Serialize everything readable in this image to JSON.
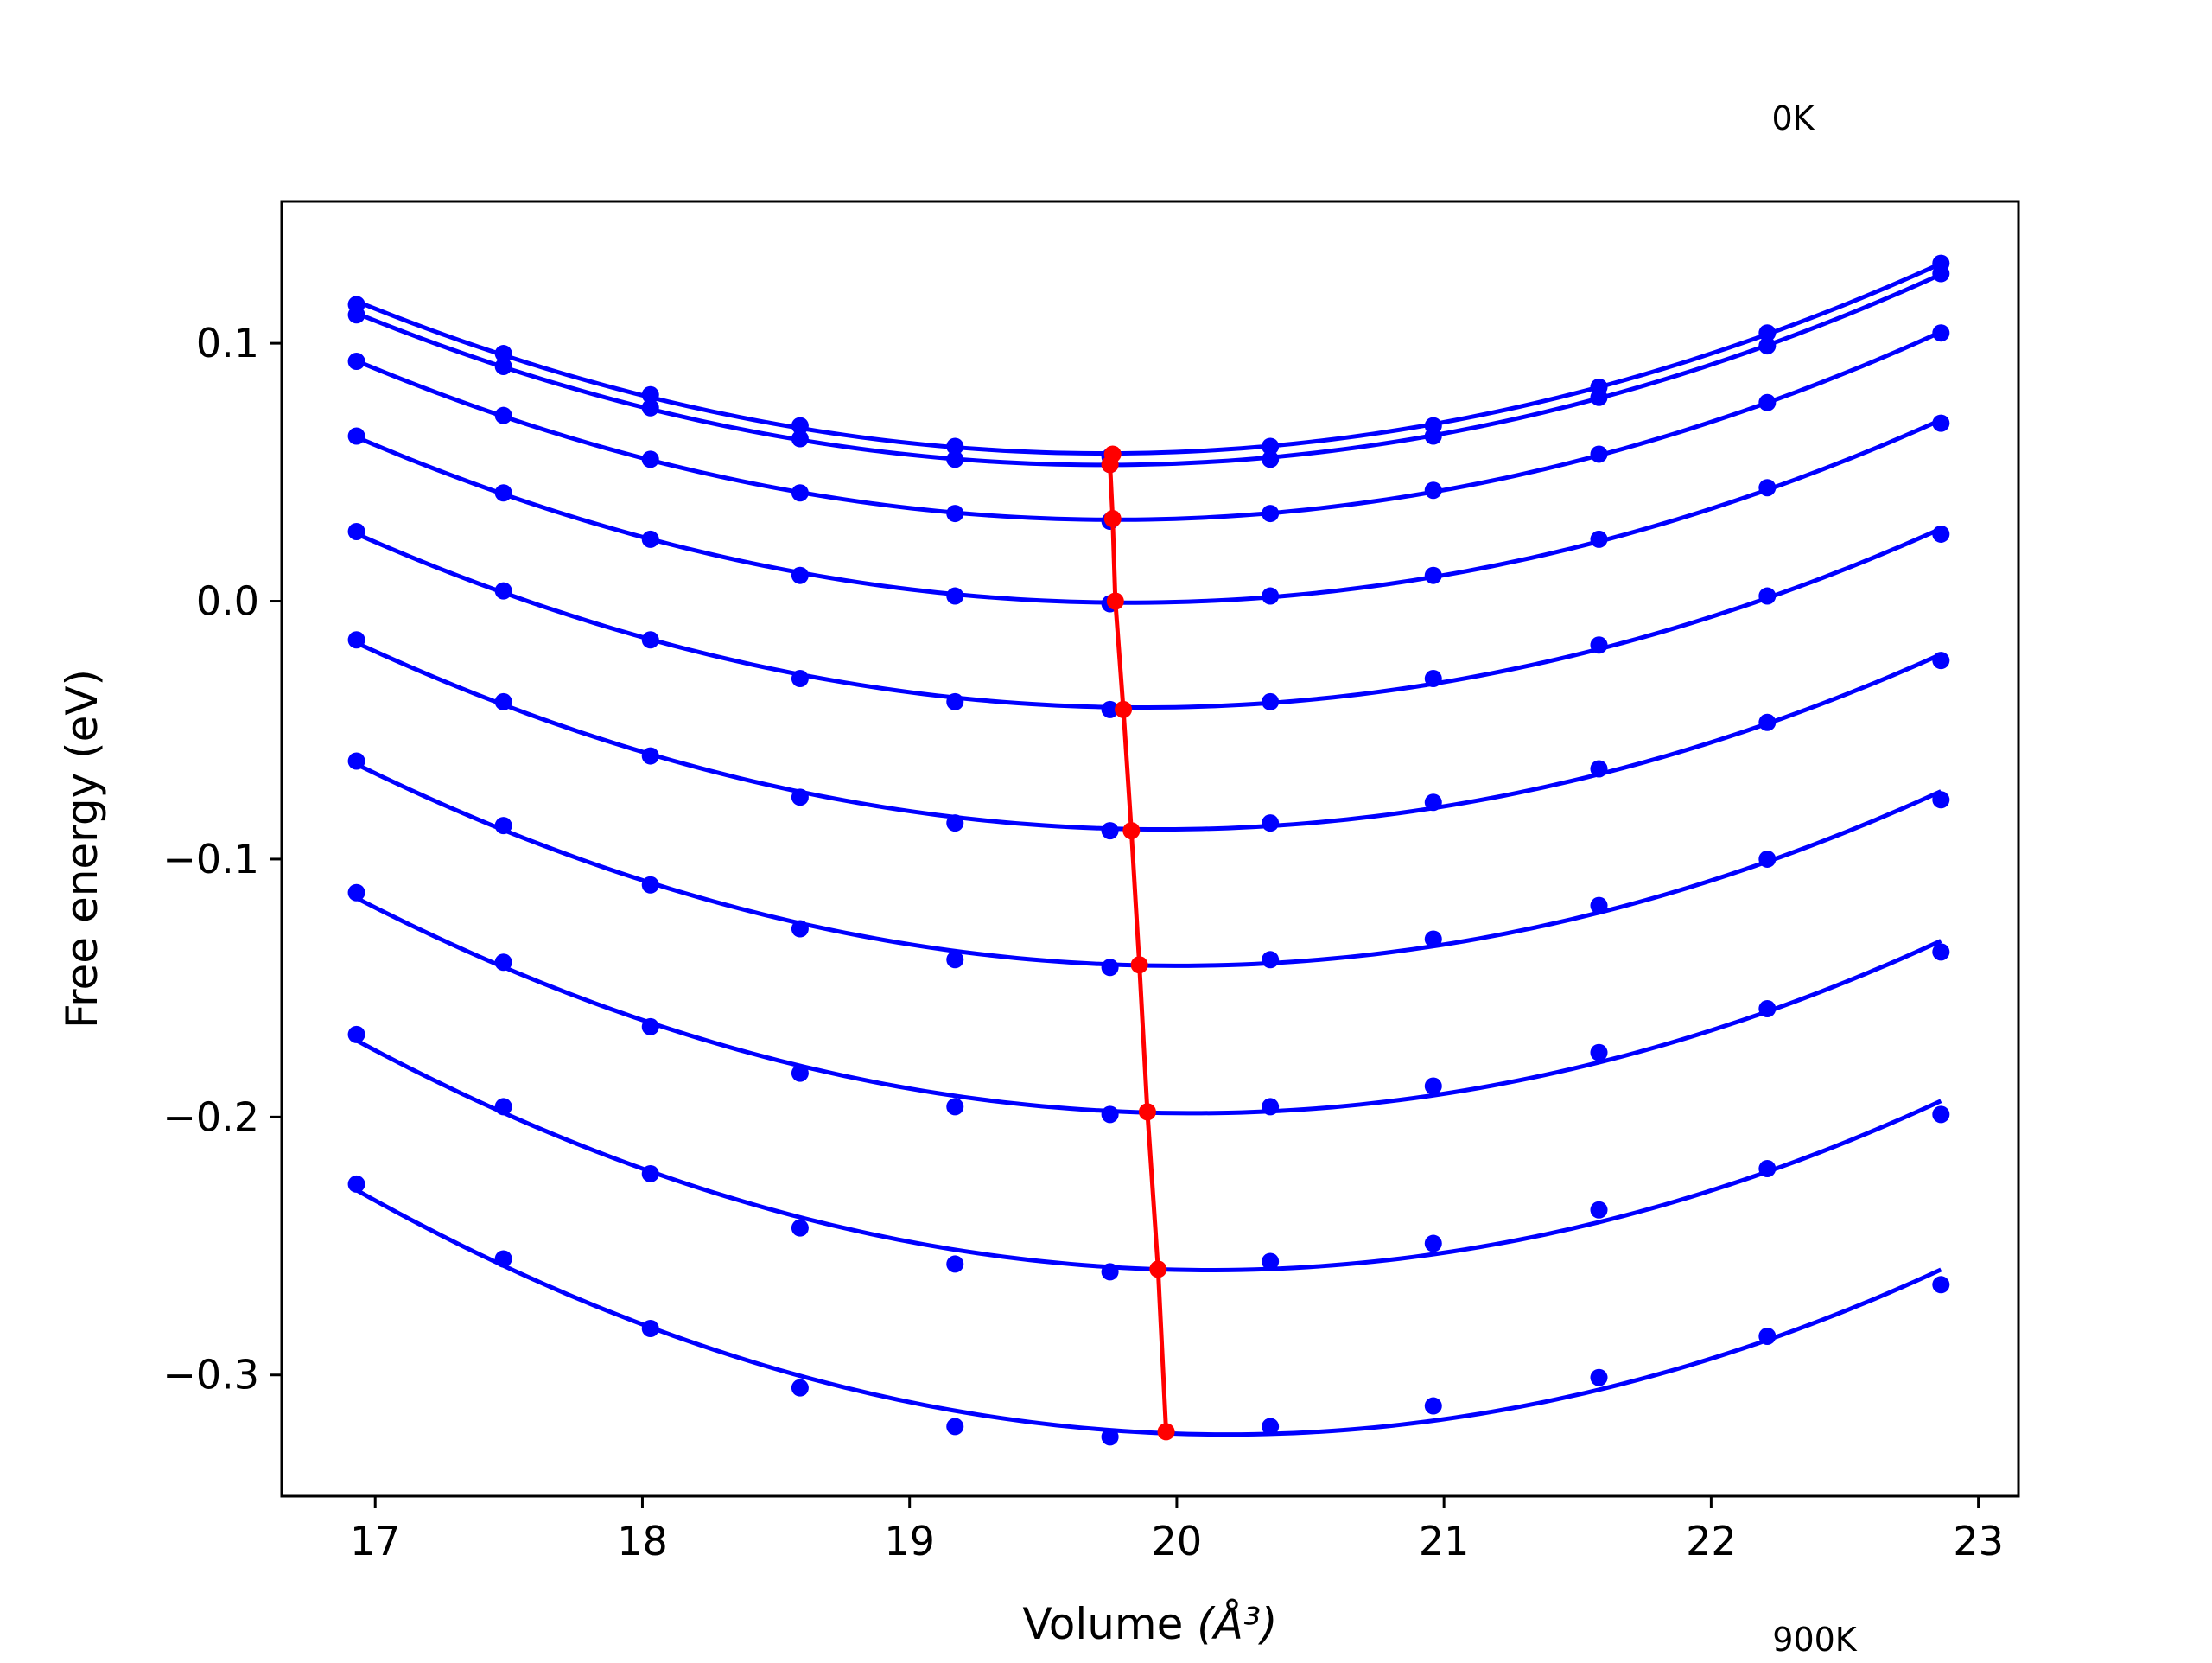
{
  "chart_data": {
    "type": "line",
    "xlabel": "Volume",
    "xlabel_math": "(Å³)",
    "ylabel": "Free energy (eV)",
    "xlim": [
      16.65,
      23.15
    ],
    "ylim": [
      -0.347,
      0.155
    ],
    "xticks": [
      17,
      18,
      19,
      20,
      21,
      22,
      23
    ],
    "xtick_labels": [
      "17",
      "18",
      "19",
      "20",
      "21",
      "22",
      "23"
    ],
    "yticks": [
      -0.3,
      -0.2,
      -0.1,
      0.0,
      0.1
    ],
    "ytick_labels": [
      "−0.3",
      "−0.2",
      "−0.1",
      "0.0",
      "0.1"
    ],
    "grid": false,
    "temperature_labels": {
      "top": "0K",
      "bottom": "900K"
    },
    "colors": {
      "points_and_fits": "#0000ff",
      "minimum_path": "#ff0000"
    },
    "x": [
      16.93,
      17.48,
      18.03,
      18.59,
      19.17,
      19.75,
      20.35,
      20.96,
      21.58,
      22.21,
      22.86
    ],
    "series": [
      {
        "values": [
          0.115,
          0.096,
          0.08,
          0.068,
          0.06,
          0.056,
          0.06,
          0.068,
          0.083,
          0.104,
          0.131
        ]
      },
      {
        "values": [
          0.111,
          0.091,
          0.075,
          0.063,
          0.055,
          0.053,
          0.055,
          0.064,
          0.079,
          0.099,
          0.127
        ]
      },
      {
        "values": [
          0.093,
          0.072,
          0.055,
          0.042,
          0.034,
          0.031,
          0.034,
          0.043,
          0.057,
          0.077,
          0.104
        ]
      },
      {
        "values": [
          0.064,
          0.042,
          0.024,
          0.01,
          0.002,
          -0.001,
          0.002,
          0.01,
          0.024,
          0.044,
          0.069
        ]
      },
      {
        "values": [
          0.027,
          0.004,
          -0.015,
          -0.03,
          -0.039,
          -0.042,
          -0.039,
          -0.03,
          -0.017,
          0.002,
          0.026
        ]
      },
      {
        "values": [
          -0.015,
          -0.039,
          -0.06,
          -0.076,
          -0.086,
          -0.089,
          -0.086,
          -0.078,
          -0.065,
          -0.047,
          -0.023
        ]
      },
      {
        "values": [
          -0.062,
          -0.087,
          -0.11,
          -0.127,
          -0.139,
          -0.142,
          -0.139,
          -0.131,
          -0.118,
          -0.1,
          -0.077
        ]
      },
      {
        "values": [
          -0.113,
          -0.14,
          -0.165,
          -0.183,
          -0.196,
          -0.199,
          -0.196,
          -0.188,
          -0.175,
          -0.158,
          -0.136
        ]
      },
      {
        "values": [
          -0.168,
          -0.196,
          -0.222,
          -0.243,
          -0.257,
          -0.26,
          -0.256,
          -0.249,
          -0.236,
          -0.22,
          -0.199
        ]
      },
      {
        "values": [
          -0.226,
          -0.255,
          -0.282,
          -0.305,
          -0.32,
          -0.324,
          -0.32,
          -0.312,
          -0.301,
          -0.285,
          -0.265
        ]
      }
    ],
    "minimum_path": {
      "x": [
        19.76,
        19.75,
        19.76,
        19.77,
        19.8,
        19.83,
        19.86,
        19.89,
        19.93,
        19.96
      ],
      "y": [
        0.057,
        0.053,
        0.032,
        0.0,
        -0.042,
        -0.089,
        -0.141,
        -0.198,
        -0.259,
        -0.322
      ]
    }
  }
}
